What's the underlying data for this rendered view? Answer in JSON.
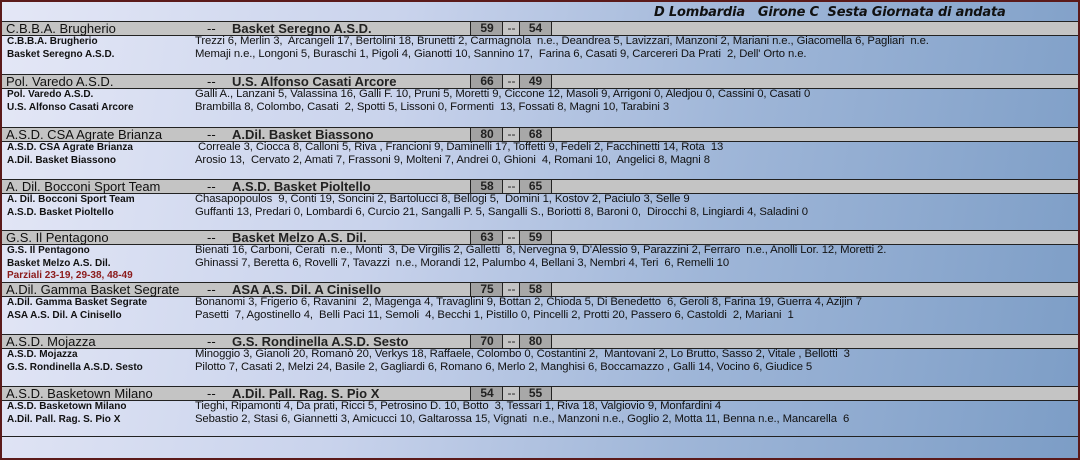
{
  "title": "D Lombardia   Girone C  Sesta Giornata di andata",
  "separator": "--",
  "games": [
    {
      "home": "C.B.B.A. Brugherio",
      "away": "Basket Seregno A.S.D.",
      "home_score": "59",
      "away_score": "54",
      "home_players": "Trezzi 6, Merlin 3,  Arcangeli 17, Bertolini 18, Brunetti 2, Carmagnola  n.e., Deandrea 5, Lavizzari, Manzoni 2, Mariani n.e., Giacomella 6, Pagliari  n.e.",
      "away_players": "Memaji n.e., Longoni 5, Buraschi 1, Pigoli 4, Gianotti 10, Sannino 17,  Farina 6, Casati 9, Carcereri Da Prati  2, Dell' Orto n.e."
    },
    {
      "home": "Pol. Varedo A.S.D.",
      "away": "U.S. Alfonso Casati Arcore",
      "home_score": "66",
      "away_score": "49",
      "home_players": "Galli A., Lanzani 5, Valassina 16, Galli F. 10, Pruni 5, Moretti 9, Ciccone 12, Masoli 9, Arrigoni 0, Aledjou 0, Cassini 0, Casati 0",
      "away_players": "Brambilla 8, Colombo, Casati  2, Spotti 5, Lissoni 0, Formenti  13, Fossati 8, Magni 10, Tarabini 3"
    },
    {
      "home": "A.S.D. CSA Agrate Brianza",
      "away": "A.Dil. Basket Biassono",
      "home_score": "80",
      "away_score": "68",
      "home_players": " Correale 3, Ciocca 8, Calloni 5, Riva , Francioni 9, Daminelli 17, Toffetti 9, Fedeli 2, Facchinetti 14, Rota  13",
      "away_players": "Arosio 13,  Cervato 2, Amati 7, Frassoni 9, Molteni 7, Andrei 0, Ghioni  4, Romani 10,  Angelici 8, Magni 8"
    },
    {
      "home": "A. Dil. Bocconi Sport Team",
      "away": "A.S.D. Basket Pioltello",
      "home_score": "58",
      "away_score": "65",
      "home_players": "Chasapopoulos  9, Conti 19, Soncini 2, Bartolucci 8, Bellogi 5,  Domini 1, Kostov 2, Paciulo 3, Selle 9",
      "away_players": "Guffanti 13, Predari 0, Lombardi 6, Curcio 21, Sangalli P. 5, Sangalli S., Boriotti 8, Baroni 0,  Dirocchi 8, Lingiardi 4, Saladini 0"
    },
    {
      "home": "G.S. Il Pentagono",
      "away": "Basket Melzo A.S. Dil.",
      "home_score": "63",
      "away_score": "59",
      "home_players": "Bienati 16, Carboni, Cerati  n.e., Monti  3, De Virgilis 2, Galletti  8, Nervegna 9, D'Alessio 9, Parazzini 2, Ferraro  n.e., Anolli Lor. 12, Moretti 2.",
      "away_players": "Ghinassi 7, Beretta 6, Rovelli 7, Tavazzi  n.e., Morandi 12, Palumbo 4, Bellani 3, Nembri 4, Teri  6, Remelli 10",
      "partials": "Parziali 23-19, 29-38, 48-49"
    },
    {
      "home": "A.Dil. Gamma Basket Segrate",
      "away": "ASA A.S. Dil. A Cinisello",
      "home_score": "75",
      "away_score": "58",
      "home_players": "Bonanomi 3, Frigerio 6, Ravanini  2, Magenga 4, Travaglini 9, Bottan 2, Chioda 5, Di Benedetto  6, Geroli 8, Farina 19, Guerra 4, Azijin 7",
      "away_players": "Pasetti  7, Agostinello 4,  Belli Paci 11, Semoli  4, Becchi 1, Pistillo 0, Pincelli 2, Protti 20, Passero 6, Castoldi  2, Mariani  1"
    },
    {
      "home": "A.S.D. Mojazza",
      "away": "G.S. Rondinella A.S.D. Sesto",
      "home_score": "70",
      "away_score": "80",
      "home_players": "Minoggio 3, Gianoli 20, Romanò 20, Verkys 18, Raffaele, Colombo 0, Costantini 2,  Mantovani 2, Lo Brutto, Sasso 2, Vitale , Bellotti  3",
      "away_players": "Pilotto 7, Casati 2, Melzi 24, Basile 2, Gagliardi 6, Romano 6, Merlo 2, Manghisi 6, Boccamazzo , Galli 14, Vocino 6, Giudice 5"
    },
    {
      "home": "A.S.D. Basketown Milano",
      "away": "A.Dil. Pall. Rag. S. Pio X",
      "home_score": "54",
      "away_score": "55",
      "home_players": "Tieghi, Ripamonti 4, Da prati, Ricci 5, Petrosino D. 10, Botto  3, Tessari 1, Riva 18, Valgiovio 9, Monfardini 4",
      "away_players": "Sebastio 2, Stasi 6, Giannetti 3, Amicucci 10, Galtarossa 15, Vignati  n.e., Manzoni n.e., Goglio 2, Motta 11, Benna n.e., Mancarella  6"
    }
  ]
}
